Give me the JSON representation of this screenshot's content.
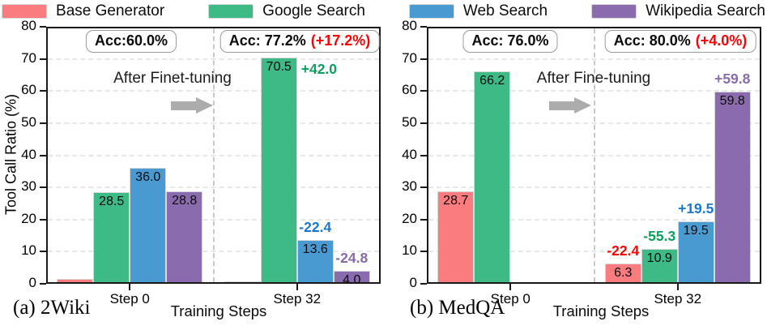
{
  "legend": {
    "items": [
      {
        "label": "Base Generator",
        "color": "#fb7c7e"
      },
      {
        "label": "Google Search",
        "color": "#3eba87"
      },
      {
        "label": "Web Search",
        "color": "#4a9ad2"
      },
      {
        "label": "Wikipedia Search",
        "color": "#8a6cae"
      }
    ]
  },
  "chart_data": [
    {
      "type": "bar",
      "panel_label": "(a) 2Wiki",
      "title": "",
      "xlabel": "Training Steps",
      "ylabel": "Tool Call Ratio (%)",
      "ylim": [
        0,
        80
      ],
      "yticks": [
        0,
        10,
        20,
        30,
        40,
        50,
        60,
        70,
        80
      ],
      "grid": "horizontal-dashed",
      "legend_position": "top-outside",
      "categories": [
        "Step 0",
        "Step 32"
      ],
      "series": [
        {
          "name": "Base Generator",
          "color": "#fb7c7e",
          "values": [
            1.6,
            0.7
          ],
          "bar_labels": [
            "",
            ""
          ]
        },
        {
          "name": "Google Search",
          "color": "#3eba87",
          "values": [
            28.5,
            70.5
          ],
          "bar_labels": [
            "28.5",
            "70.5"
          ]
        },
        {
          "name": "Web Search",
          "color": "#4a9ad2",
          "values": [
            36.0,
            13.6
          ],
          "bar_labels": [
            "36.0",
            "13.6"
          ]
        },
        {
          "name": "Wikipedia Search",
          "color": "#8a6cae",
          "values": [
            28.8,
            4.0
          ],
          "bar_labels": [
            "28.8",
            "4.0"
          ]
        }
      ],
      "acc_boxes": [
        {
          "text": "Acc:60.0%",
          "delta": ""
        },
        {
          "text": "Acc: 77.2%",
          "delta": "(+17.2%)"
        }
      ],
      "transition": {
        "text": "After Finet-tuning"
      },
      "deltas": [
        {
          "series": 1,
          "category": 1,
          "text": "+42.0",
          "color": "#0ba05c",
          "placement": "right"
        },
        {
          "series": 2,
          "category": 1,
          "text": "-22.4",
          "color": "#1878cf",
          "placement": "above"
        },
        {
          "series": 3,
          "category": 1,
          "text": "-24.8",
          "color": "#8668ab",
          "placement": "above"
        }
      ]
    },
    {
      "type": "bar",
      "panel_label": "(b) MedQA",
      "title": "",
      "xlabel": "Training Steps",
      "ylabel": "",
      "ylim": [
        0,
        80
      ],
      "yticks": [
        0,
        10,
        20,
        30,
        40,
        50,
        60,
        70,
        80
      ],
      "grid": "horizontal-dashed",
      "legend_position": "top-outside",
      "categories": [
        "Step 0",
        "Step 32"
      ],
      "series": [
        {
          "name": "Base Generator",
          "color": "#fb7c7e",
          "values": [
            28.7,
            6.3
          ],
          "bar_labels": [
            "28.7",
            "6.3"
          ]
        },
        {
          "name": "Google Search",
          "color": "#3eba87",
          "values": [
            66.2,
            10.9
          ],
          "bar_labels": [
            "66.2",
            "10.9"
          ]
        },
        {
          "name": "Web Search",
          "color": "#4a9ad2",
          "values": [
            0,
            19.5
          ],
          "bar_labels": [
            "",
            "19.5"
          ]
        },
        {
          "name": "Wikipedia Search",
          "color": "#8a6cae",
          "values": [
            0,
            59.8
          ],
          "bar_labels": [
            "",
            "59.8"
          ]
        }
      ],
      "acc_boxes": [
        {
          "text": "Acc: 76.0%",
          "delta": ""
        },
        {
          "text": "Acc: 80.0%",
          "delta": "(+4.0%)"
        }
      ],
      "transition": {
        "text": "After Fine-tuning"
      },
      "deltas": [
        {
          "series": 0,
          "category": 1,
          "text": "-22.4",
          "color": "#ff0000",
          "placement": "above"
        },
        {
          "series": 1,
          "category": 1,
          "text": "-55.3",
          "color": "#0ba05c",
          "placement": "above"
        },
        {
          "series": 2,
          "category": 1,
          "text": "+19.5",
          "color": "#1878cf",
          "placement": "above"
        },
        {
          "series": 3,
          "category": 1,
          "text": "+59.8",
          "color": "#8a6cae",
          "placement": "above"
        }
      ]
    }
  ],
  "colors": {
    "accent_red": "#ff0000",
    "delta_green": "#0ba05c",
    "delta_blue": "#1878cf",
    "delta_purple": "#8668ab",
    "arrow_gray": "#acacac",
    "spine": "#1a1a1a",
    "gridline": "#e7e7e7",
    "group_separator": "#c9c9c9",
    "bar_edge": "#d8d8d8"
  }
}
